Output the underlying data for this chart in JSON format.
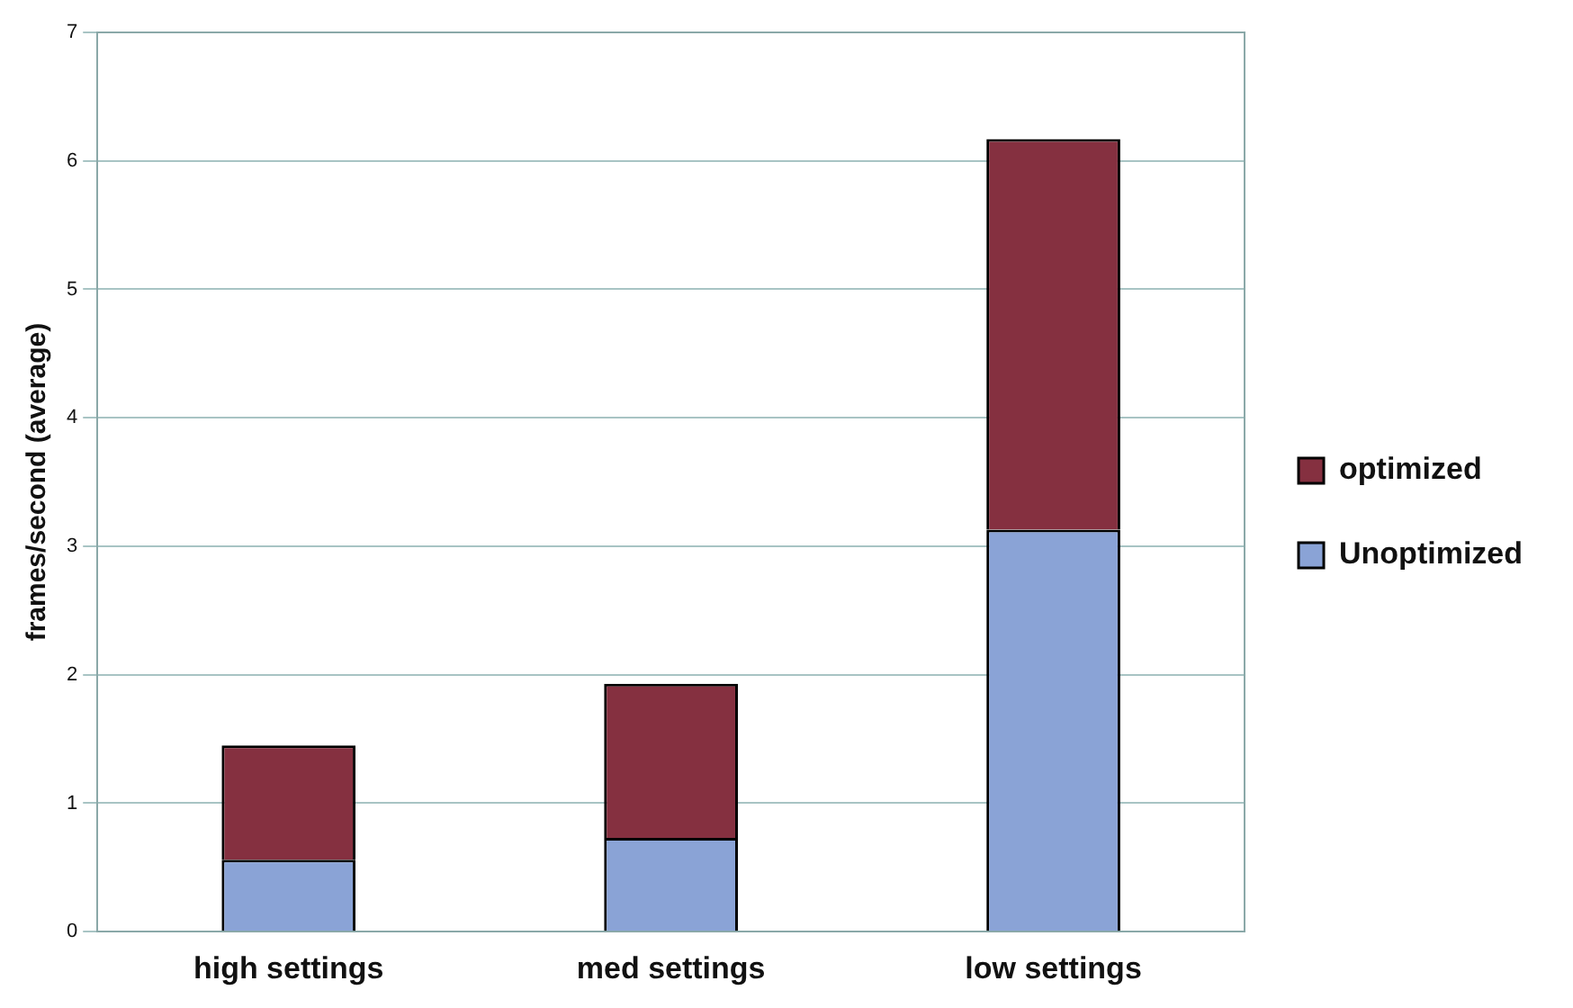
{
  "chart_data": {
    "type": "bar",
    "ylabel": "frames/second (average)",
    "categories": [
      "high settings",
      "med settings",
      "low settings"
    ],
    "series": [
      {
        "name": "Unoptimized",
        "color": "#8aa3d6",
        "values": [
          0.56,
          0.73,
          3.13
        ]
      },
      {
        "name": "optimized",
        "color": "#853040",
        "values": [
          0.89,
          1.2,
          3.04
        ]
      }
    ],
    "stacked": true,
    "ylim": [
      0,
      7
    ],
    "yticks": [
      0,
      1,
      2,
      3,
      4,
      5,
      6,
      7
    ],
    "grid": "y",
    "legend": "right"
  }
}
